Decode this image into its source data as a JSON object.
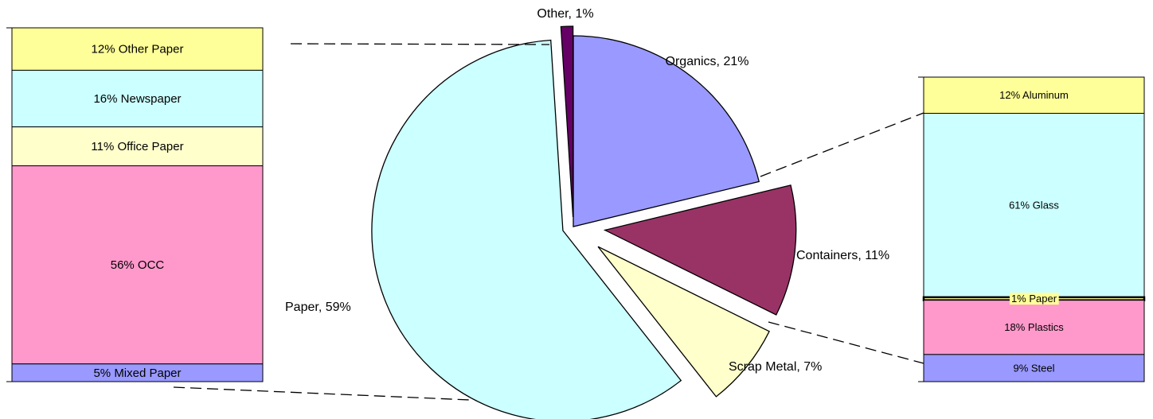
{
  "chart_data": [
    {
      "type": "pie",
      "categories": [
        "Organics",
        "Containers",
        "Scrap Metal",
        "Paper",
        "Other"
      ],
      "values": [
        21,
        11,
        7,
        59,
        1
      ],
      "value_labels": [
        "Organics, 21%",
        "Containers, 11%",
        "Scrap Metal, 7%",
        "Paper, 59%",
        "Other, 1%"
      ],
      "colors": [
        "#9999ff",
        "#993366",
        "#ffffcc",
        "#ccffff",
        "#660066"
      ]
    },
    {
      "type": "stacked-bar",
      "series": [
        {
          "values": [
            12
          ],
          "value_labels": [
            "12% Other Paper"
          ],
          "color": "#ffff99"
        },
        {
          "values": [
            16
          ],
          "value_labels": [
            "16% Newspaper"
          ],
          "color": "#ccffff"
        },
        {
          "values": [
            11
          ],
          "value_labels": [
            "11% Office Paper"
          ],
          "color": "#ffffcc"
        },
        {
          "values": [
            56
          ],
          "value_labels": [
            "56% OCC"
          ],
          "color": "#ff99cc"
        },
        {
          "values": [
            5
          ],
          "value_labels": [
            "5% Mixed Paper"
          ],
          "color": "#9999ff"
        }
      ]
    },
    {
      "type": "stacked-bar",
      "series": [
        {
          "values": [
            12
          ],
          "value_labels": [
            "12% Aluminum"
          ],
          "color": "#ffff99"
        },
        {
          "values": [
            61
          ],
          "value_labels": [
            "61% Glass"
          ],
          "color": "#ccffff"
        },
        {
          "values": [
            1
          ],
          "value_labels": [
            "1%  Paper"
          ],
          "color": "#ffff99"
        },
        {
          "values": [
            18
          ],
          "value_labels": [
            "18% Plastics"
          ],
          "color": "#ff99cc"
        },
        {
          "values": [
            9
          ],
          "value_labels": [
            "9% Steel"
          ],
          "color": "#9999ff"
        }
      ]
    }
  ]
}
